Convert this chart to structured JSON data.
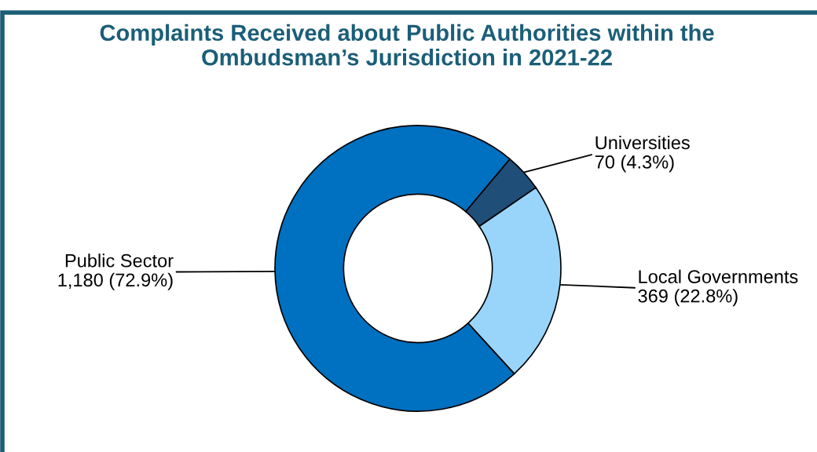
{
  "chart_data": {
    "type": "donut",
    "title": "Complaints Received about Public Authorities within the\nOmbudsman’s Jurisdiction in 2021-22",
    "categories": [
      "Universities",
      "Local Governments",
      "Public Sector"
    ],
    "values": [
      70,
      369,
      1180
    ],
    "value_labels": [
      "70 (4.3%)",
      "369 (22.8%)",
      "1,180 (72.9%)"
    ],
    "colors": [
      "#1f4e79",
      "#99d5fb",
      "#0070c0"
    ]
  }
}
